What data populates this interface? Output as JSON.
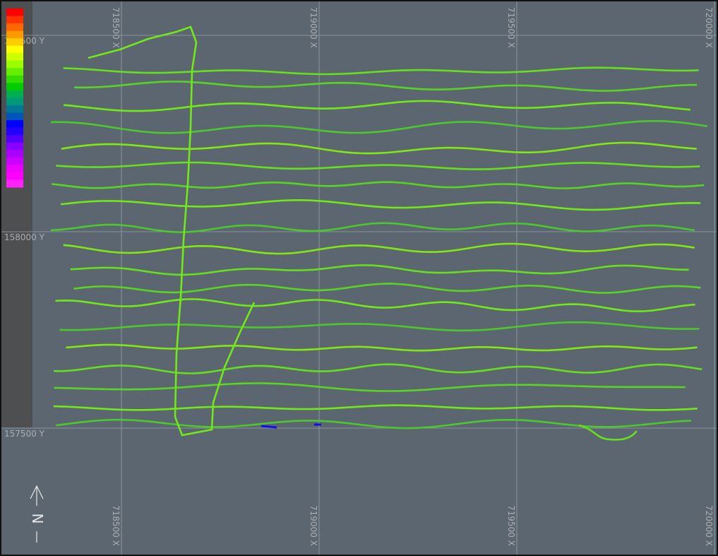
{
  "grid": {
    "x_labels": [
      "718500 X",
      "719000 X",
      "719500 X",
      "720000 X"
    ],
    "y_labels": [
      "158500 Y",
      "158000 Y",
      "157500 Y"
    ]
  },
  "north": {
    "label": "N"
  }
}
